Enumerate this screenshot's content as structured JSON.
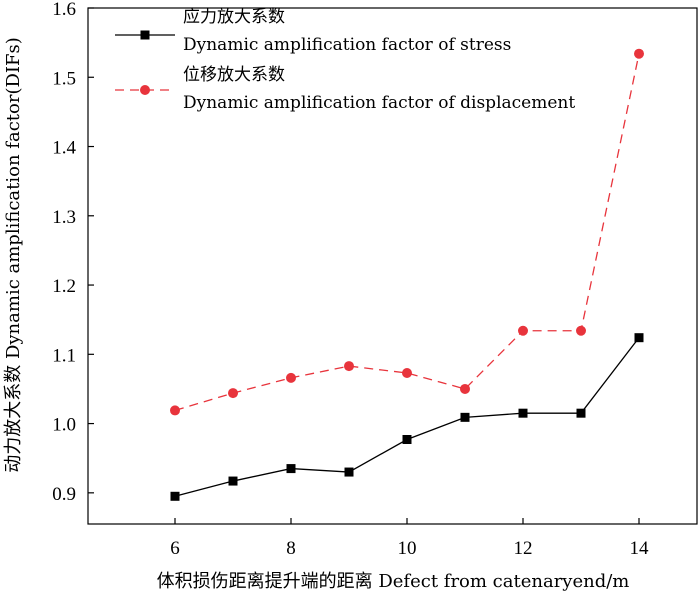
{
  "chart_data": {
    "type": "line",
    "xlabel": "体积损伤距离提升端的距离 Defect from catenaryend/m",
    "ylabel": "动力放大系数 Dynamic amplification factor(DIFs)",
    "xlim": [
      4.5,
      15
    ],
    "ylim": [
      0.855,
      1.6
    ],
    "xticks": [
      6,
      8,
      10,
      12,
      14
    ],
    "yticks": [
      0.9,
      1.0,
      1.1,
      1.2,
      1.3,
      1.4,
      1.5,
      1.6
    ],
    "xtick_labels": [
      "6",
      "8",
      "10",
      "12",
      "14"
    ],
    "ytick_labels": [
      "0.9",
      "1.0",
      "1.1",
      "1.2",
      "1.3",
      "1.4",
      "1.5",
      "1.6"
    ],
    "grid": false,
    "legend_position": "top-left",
    "series": [
      {
        "name_cn": "应力放大系数",
        "name_en": "Dynamic amplification factor of stress",
        "color": "#000000",
        "line_style": "solid",
        "marker": "square",
        "x": [
          6,
          7,
          8,
          9,
          10,
          11,
          12,
          13,
          14
        ],
        "values": [
          0.895,
          0.917,
          0.935,
          0.93,
          0.977,
          1.009,
          1.015,
          1.015,
          1.124
        ]
      },
      {
        "name_cn": "位移放大系数",
        "name_en": "Dynamic amplification factor of displacement",
        "color": "#e8343c",
        "line_style": "dashed",
        "marker": "circle",
        "x": [
          6,
          7,
          8,
          9,
          10,
          11,
          12,
          13,
          14
        ],
        "values": [
          1.019,
          1.044,
          1.066,
          1.083,
          1.073,
          1.05,
          1.134,
          1.134,
          1.534
        ]
      }
    ]
  }
}
